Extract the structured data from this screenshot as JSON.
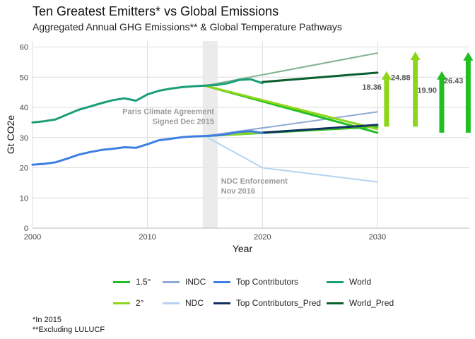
{
  "header": {
    "title": "Ten Greatest Emitters* vs Global Emissions",
    "subtitle": "Aggregated Annual GHG Emissions** & Global Temperature Pathways"
  },
  "footnotes": [
    "*In 2015",
    "**Excluding LULUCF"
  ],
  "colors": {
    "world": "#1a9e77",
    "world_pred": "#0b5e2e",
    "top": "#3d7fe0",
    "top_pred": "#0d3263",
    "indc": "#8fa9d6",
    "ndc": "#b6d3f2",
    "p15": "#21c021",
    "p2": "#8ed61a",
    "world_upper": "#82b38f",
    "band": "#e8e8e8"
  },
  "chart_data": {
    "type": "line",
    "xlabel": "Year",
    "ylabel": "Gt CO2e",
    "xlim": [
      2000,
      2038
    ],
    "ylim": [
      0,
      62
    ],
    "xticks": [
      2000,
      2010,
      2020,
      2030
    ],
    "yticks": [
      0,
      10,
      20,
      30,
      40,
      50,
      60
    ],
    "grid": true,
    "legend_position": "bottom",
    "series": [
      {
        "name": "World",
        "key": "world",
        "points": [
          [
            2000,
            35
          ],
          [
            2001,
            35.4
          ],
          [
            2002,
            36
          ],
          [
            2003,
            37.6
          ],
          [
            2004,
            39.2
          ],
          [
            2005,
            40.3
          ],
          [
            2006,
            41.4
          ],
          [
            2007,
            42.4
          ],
          [
            2008,
            43
          ],
          [
            2009,
            42.2
          ],
          [
            2010,
            44.3
          ],
          [
            2011,
            45.5
          ],
          [
            2012,
            46.2
          ],
          [
            2013,
            46.7
          ],
          [
            2014,
            47
          ],
          [
            2015,
            47.2
          ],
          [
            2016,
            47.4
          ],
          [
            2017,
            48
          ],
          [
            2018,
            49.1
          ],
          [
            2019,
            49.3
          ],
          [
            2020,
            48
          ]
        ]
      },
      {
        "name": "Top Contributors",
        "key": "top",
        "points": [
          [
            2000,
            21
          ],
          [
            2001,
            21.3
          ],
          [
            2002,
            21.8
          ],
          [
            2003,
            23
          ],
          [
            2004,
            24.3
          ],
          [
            2005,
            25.2
          ],
          [
            2006,
            25.9
          ],
          [
            2007,
            26.3
          ],
          [
            2008,
            26.8
          ],
          [
            2009,
            26.6
          ],
          [
            2010,
            27.8
          ],
          [
            2011,
            29.1
          ],
          [
            2012,
            29.6
          ],
          [
            2013,
            30.1
          ],
          [
            2014,
            30.4
          ],
          [
            2015,
            30.5
          ],
          [
            2016,
            30.7
          ],
          [
            2017,
            31.2
          ],
          [
            2018,
            31.9
          ],
          [
            2019,
            32.1
          ],
          [
            2020,
            31.5
          ]
        ]
      },
      {
        "name": "World_Pred",
        "key": "world_pred",
        "points": [
          [
            2020,
            48.4
          ],
          [
            2030,
            51.5
          ]
        ]
      },
      {
        "name": "Top Contributors_Pred",
        "key": "top_pred",
        "points": [
          [
            2020,
            31.6
          ],
          [
            2030,
            34.2
          ]
        ]
      },
      {
        "name": "INDC",
        "key": "indc",
        "points": [
          [
            2015,
            30.5
          ],
          [
            2030,
            38.5
          ]
        ]
      },
      {
        "name": "NDC",
        "key": "ndc",
        "points": [
          [
            2015,
            30.5
          ],
          [
            2020,
            20
          ],
          [
            2030,
            15.3
          ]
        ]
      },
      {
        "name": "1.5°",
        "key": "p15",
        "points": [
          [
            2015,
            47.2
          ],
          [
            2030,
            31.6
          ]
        ]
      },
      {
        "name": "2°",
        "key": "p2",
        "points": [
          [
            2015,
            47.2
          ],
          [
            2030,
            32.8
          ]
        ]
      }
    ],
    "extra_lines": [
      {
        "key": "world_upper",
        "points": [
          [
            2015,
            47.2
          ],
          [
            2030,
            58
          ]
        ]
      },
      {
        "key": "p15",
        "points": [
          [
            2015,
            30.5
          ],
          [
            2030,
            33.6
          ]
        ]
      },
      {
        "key": "p2",
        "points": [
          [
            2015,
            30.5
          ],
          [
            2030,
            34
          ]
        ]
      }
    ],
    "highlight_band": [
      2014.8,
      2016.1
    ],
    "annotations": [
      {
        "lines": [
          "Paris Climate Agreement",
          "Signed Dec 2015"
        ],
        "x": 2015.8,
        "y": 37.8,
        "anchor": "end"
      },
      {
        "lines": [
          "NDC Enforcement",
          "Nov 2016"
        ],
        "x": 2016.4,
        "y": 14.7,
        "anchor": "start"
      }
    ],
    "gap_arrows": [
      {
        "key": "p2",
        "x": 2030.8,
        "from": 33.6,
        "to": 52,
        "label": "18.36"
      },
      {
        "key": "p2",
        "x": 2033.3,
        "from": 33.6,
        "to": 58.5,
        "label": "24.88"
      },
      {
        "key": "p15",
        "x": 2035.6,
        "from": 31.6,
        "to": 52,
        "label": "19.90"
      },
      {
        "key": "p15",
        "x": 2037.9,
        "from": 31.6,
        "to": 58.3,
        "label": "26.43"
      }
    ]
  },
  "legend": {
    "rows": [
      [
        {
          "label": "1.5°",
          "key": "p15"
        },
        {
          "label": "INDC",
          "key": "indc"
        },
        {
          "label": "Top Contributors",
          "key": "top"
        },
        {
          "label": "World",
          "key": "world"
        }
      ],
      [
        {
          "label": "2°",
          "key": "p2"
        },
        {
          "label": "NDC",
          "key": "ndc"
        },
        {
          "label": "Top Contributors_Pred",
          "key": "top_pred"
        },
        {
          "label": "World_Pred",
          "key": "world_pred"
        }
      ]
    ]
  }
}
